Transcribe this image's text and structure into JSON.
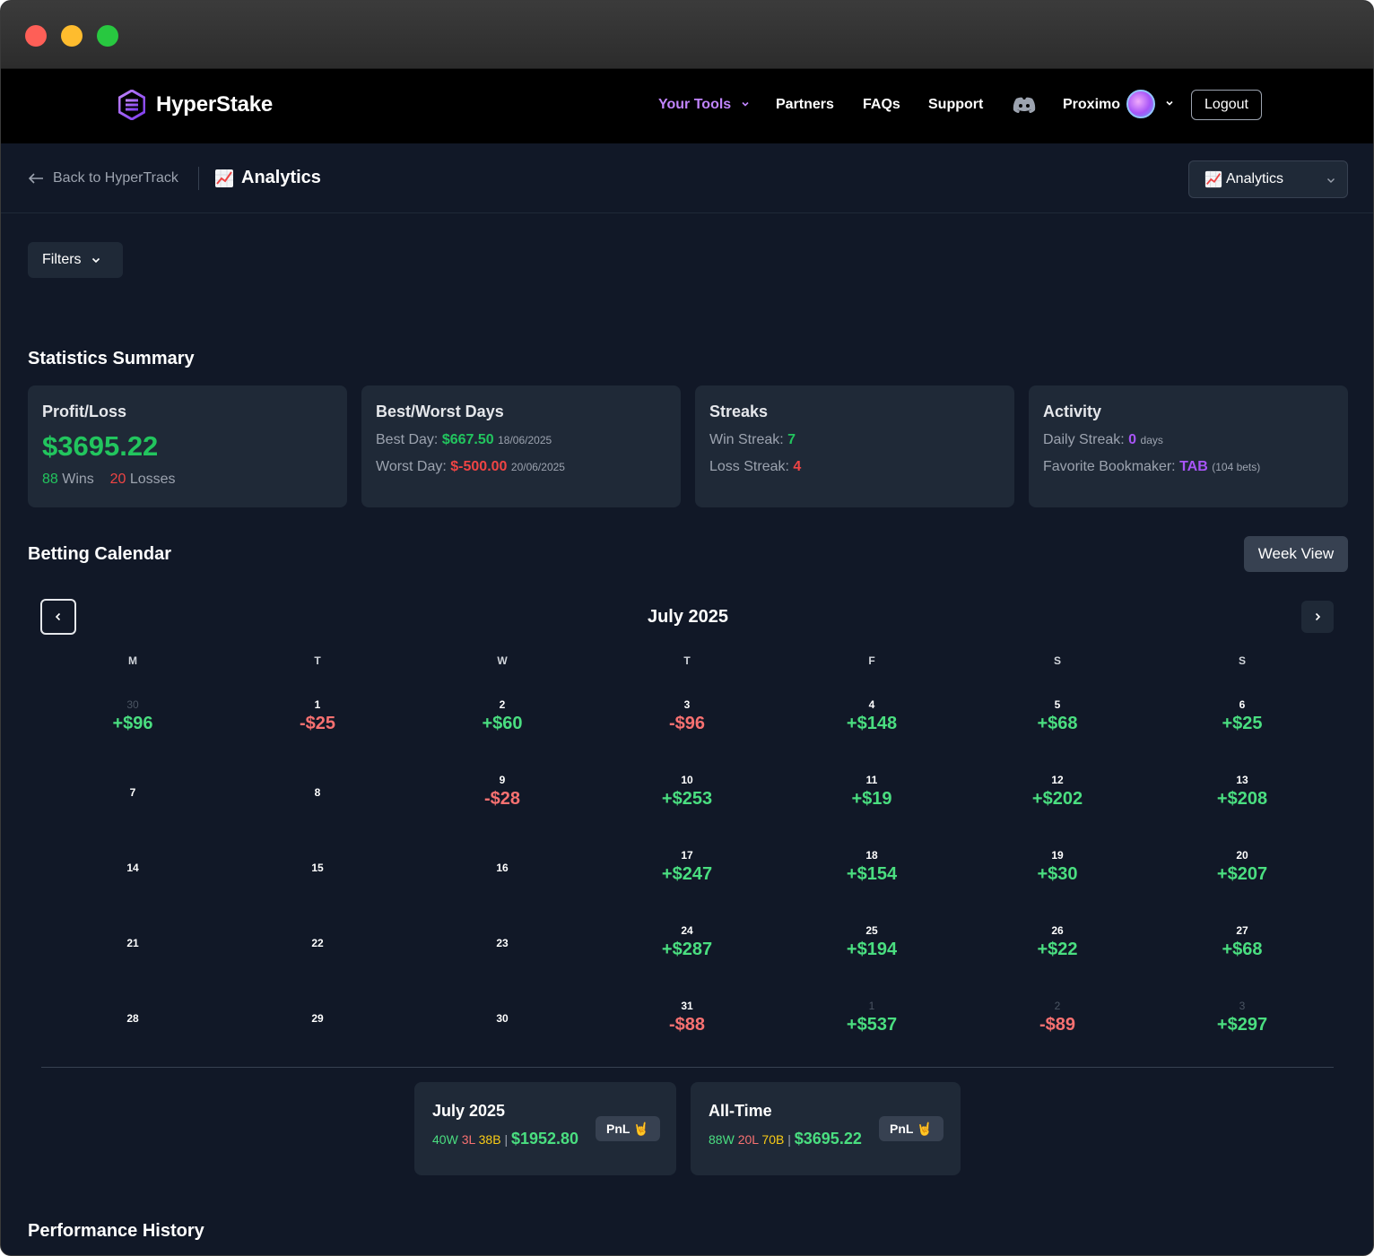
{
  "brand": {
    "name": "HyperStake"
  },
  "nav": {
    "tools": "Your Tools",
    "partners": "Partners",
    "faqs": "FAQs",
    "support": "Support",
    "user": "Proximo",
    "logout": "Logout"
  },
  "subheader": {
    "back": "Back to HyperTrack",
    "title": "Analytics",
    "select_value": "Analytics"
  },
  "filters": {
    "label": "Filters"
  },
  "stats": {
    "title": "Statistics Summary",
    "profit": {
      "title": "Profit/Loss",
      "value": "$3695.22",
      "wins": "88",
      "wins_label": "Wins",
      "losses": "20",
      "losses_label": "Losses"
    },
    "days": {
      "title": "Best/Worst Days",
      "best_label": "Best Day:",
      "best_value": "$667.50",
      "best_date": "18/06/2025",
      "worst_label": "Worst Day:",
      "worst_value": "$-500.00",
      "worst_date": "20/06/2025"
    },
    "streaks": {
      "title": "Streaks",
      "win_label": "Win Streak:",
      "win_value": "7",
      "loss_label": "Loss Streak:",
      "loss_value": "4"
    },
    "activity": {
      "title": "Activity",
      "daily_label": "Daily Streak:",
      "daily_value": "0",
      "daily_unit": "days",
      "fav_label": "Favorite Bookmaker:",
      "fav_value": "TAB",
      "fav_count": "(104 bets)"
    }
  },
  "calendar": {
    "title": "Betting Calendar",
    "week_view": "Week View",
    "month": "July 2025",
    "weekdays": [
      "M",
      "T",
      "W",
      "T",
      "F",
      "S",
      "S"
    ],
    "weeks": [
      [
        {
          "d": "30",
          "p": "+$96",
          "m": true
        },
        {
          "d": "1",
          "p": "-$25"
        },
        {
          "d": "2",
          "p": "+$60"
        },
        {
          "d": "3",
          "p": "-$96"
        },
        {
          "d": "4",
          "p": "+$148"
        },
        {
          "d": "5",
          "p": "+$68"
        },
        {
          "d": "6",
          "p": "+$25"
        }
      ],
      [
        {
          "d": "7",
          "p": ""
        },
        {
          "d": "8",
          "p": ""
        },
        {
          "d": "9",
          "p": "-$28"
        },
        {
          "d": "10",
          "p": "+$253"
        },
        {
          "d": "11",
          "p": "+$19"
        },
        {
          "d": "12",
          "p": "+$202"
        },
        {
          "d": "13",
          "p": "+$208"
        }
      ],
      [
        {
          "d": "14",
          "p": ""
        },
        {
          "d": "15",
          "p": ""
        },
        {
          "d": "16",
          "p": ""
        },
        {
          "d": "17",
          "p": "+$247"
        },
        {
          "d": "18",
          "p": "+$154"
        },
        {
          "d": "19",
          "p": "+$30"
        },
        {
          "d": "20",
          "p": "+$207"
        }
      ],
      [
        {
          "d": "21",
          "p": ""
        },
        {
          "d": "22",
          "p": ""
        },
        {
          "d": "23",
          "p": ""
        },
        {
          "d": "24",
          "p": "+$287"
        },
        {
          "d": "25",
          "p": "+$194"
        },
        {
          "d": "26",
          "p": "+$22"
        },
        {
          "d": "27",
          "p": "+$68"
        }
      ],
      [
        {
          "d": "28",
          "p": ""
        },
        {
          "d": "29",
          "p": ""
        },
        {
          "d": "30",
          "p": ""
        },
        {
          "d": "31",
          "p": "-$88"
        },
        {
          "d": "1",
          "p": "+$537",
          "m": true
        },
        {
          "d": "2",
          "p": "-$89",
          "m": true
        },
        {
          "d": "3",
          "p": "+$297",
          "m": true
        }
      ]
    ],
    "summary_month": {
      "title": "July 2025",
      "w": "40W",
      "l": "3L",
      "b": "38B",
      "sep": "|",
      "amount": "$1952.80",
      "badge": "PnL 🤘"
    },
    "summary_all": {
      "title": "All-Time",
      "w": "88W",
      "l": "20L",
      "b": "70B",
      "sep": "|",
      "amount": "$3695.22",
      "badge": "PnL 🤘"
    }
  },
  "performance": {
    "title": "Performance History"
  }
}
